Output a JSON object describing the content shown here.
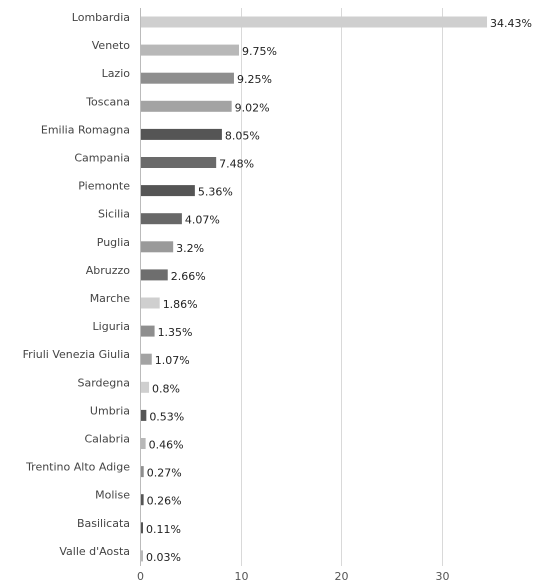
{
  "chart_data": {
    "type": "bar",
    "orientation": "horizontal",
    "categories": [
      "Lombardia",
      "Veneto",
      "Lazio",
      "Toscana",
      "Emilia Romagna",
      "Campania",
      "Piemonte",
      "Sicilia",
      "Puglia",
      "Abruzzo",
      "Marche",
      "Liguria",
      "Friuli Venezia Giulia",
      "Sardegna",
      "Umbria",
      "Calabria",
      "Trentino Alto Adige",
      "Molise",
      "Basilicata",
      "Valle d'Aosta"
    ],
    "values": [
      34.43,
      9.75,
      9.25,
      9.02,
      8.05,
      7.48,
      5.36,
      4.07,
      3.2,
      2.66,
      1.86,
      1.35,
      1.07,
      0.8,
      0.53,
      0.46,
      0.27,
      0.26,
      0.11,
      0.03
    ],
    "value_labels": [
      "34.43%",
      "9.75%",
      "9.25%",
      "9.02%",
      "8.05%",
      "7.48%",
      "5.36%",
      "4.07%",
      "3.2%",
      "2.66%",
      "1.86%",
      "1.35%",
      "1.07%",
      "0.8%",
      "0.53%",
      "0.46%",
      "0.27%",
      "0.26%",
      "0.11%",
      "0.03%"
    ],
    "bar_colors": [
      "#cfcfcf",
      "#b8b8b8",
      "#8e8e8e",
      "#a3a3a3",
      "#555555",
      "#6a6a6a",
      "#555555",
      "#686868",
      "#9a9a9a",
      "#6e6e6e",
      "#cfcfcf",
      "#8e8e8e",
      "#a3a3a3",
      "#cfcfcf",
      "#555555",
      "#b8b8b8",
      "#8e8e8e",
      "#555555",
      "#555555",
      "#b8b8b8"
    ],
    "x_ticks": [
      0,
      10,
      20,
      30
    ],
    "xlim": [
      0,
      39
    ],
    "grid": true,
    "title": "",
    "xlabel": "",
    "ylabel": ""
  }
}
